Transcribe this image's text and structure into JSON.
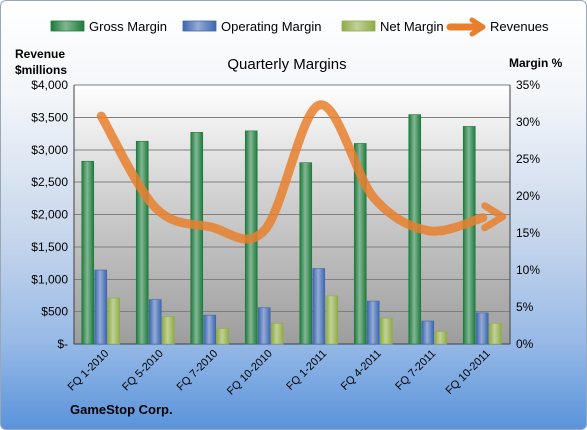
{
  "chart_data": {
    "type": "bar",
    "title": "Quarterly Margins",
    "company": "GameStop Corp.",
    "y_left_label_line1": "Revenue",
    "y_left_label_line2": "$millions",
    "y_right_label": "Margin %",
    "y_left_ticks": [
      "$-",
      "$500",
      "$1,000",
      "$1,500",
      "$2,000",
      "$2,500",
      "$3,000",
      "$3,500",
      "$4,000"
    ],
    "y_right_ticks": [
      "0%",
      "5%",
      "10%",
      "15%",
      "20%",
      "25%",
      "30%",
      "35%"
    ],
    "ylim_left": [
      0,
      4000
    ],
    "ylim_right": [
      0,
      35
    ],
    "legend_position": "top",
    "categories": [
      "FQ 1-2010",
      "FQ 5-2010",
      "FQ 7-2010",
      "FQ 10-2010",
      "FQ 1-2011",
      "FQ 4-2011",
      "FQ 7-2011",
      "FQ 10-2011"
    ],
    "series": [
      {
        "name": "Gross Margin",
        "type": "bar",
        "axis": "right",
        "color": "#1e7a3c",
        "values": [
          24.7,
          27.4,
          28.6,
          28.8,
          24.5,
          27.1,
          31.0,
          29.4
        ]
      },
      {
        "name": "Operating Margin",
        "type": "bar",
        "axis": "right",
        "color": "#3d67b0",
        "values": [
          10.0,
          6.0,
          3.9,
          4.9,
          10.2,
          5.8,
          3.1,
          4.2
        ]
      },
      {
        "name": "Net Margin",
        "type": "bar",
        "axis": "right",
        "color": "#8fac45",
        "values": [
          6.2,
          3.7,
          2.1,
          2.8,
          6.5,
          3.5,
          1.7,
          2.8
        ]
      },
      {
        "name": "Revenues",
        "type": "line",
        "axis": "left",
        "color": "#e87f2e",
        "values": [
          3520,
          2100,
          1810,
          1760,
          3690,
          2260,
          1750,
          1950
        ]
      }
    ],
    "grid": true
  }
}
